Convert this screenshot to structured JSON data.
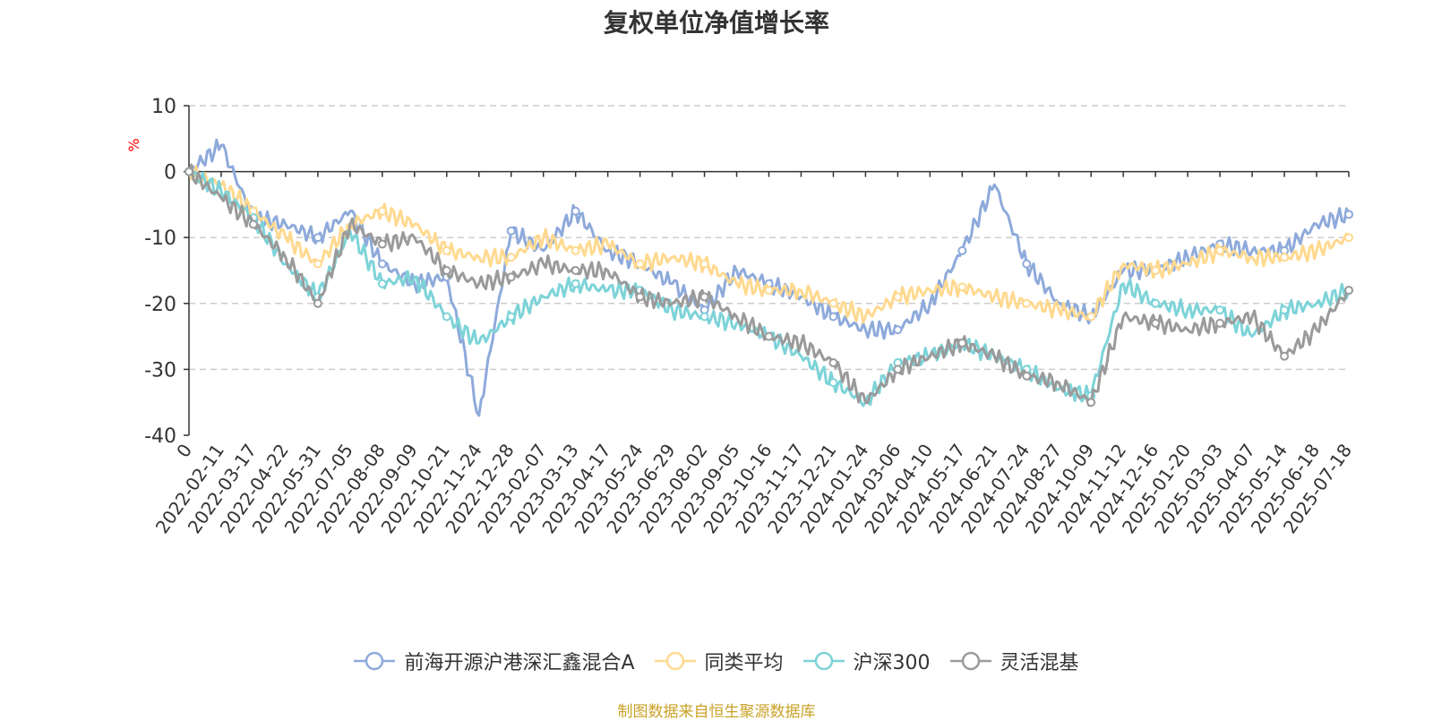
{
  "chart_data": {
    "type": "line",
    "title": "复权单位净值增长率",
    "ylabel": "%",
    "ylim": [
      -40,
      10
    ],
    "yticks": [
      10,
      0,
      -10,
      -20,
      -30,
      -40
    ],
    "grid": true,
    "legend_position": "bottom-center",
    "x_tick_labels": [
      "0",
      "2022-02-11",
      "2022-03-17",
      "2022-04-22",
      "2022-05-31",
      "2022-07-05",
      "2022-08-08",
      "2022-09-09",
      "2022-10-21",
      "2022-11-24",
      "2022-12-28",
      "2023-02-07",
      "2023-03-13",
      "2023-04-17",
      "2023-05-24",
      "2023-06-29",
      "2023-08-02",
      "2023-09-05",
      "2023-10-16",
      "2023-11-17",
      "2023-12-21",
      "2024-01-24",
      "2024-03-06",
      "2024-04-10",
      "2024-05-17",
      "2024-06-21",
      "2024-07-24",
      "2024-08-27",
      "2024-10-09",
      "2024-11-12",
      "2024-12-16",
      "2025-01-20",
      "2025-03-03",
      "2025-04-07",
      "2025-05-14",
      "2025-06-18",
      "2025-07-18"
    ],
    "series": [
      {
        "name": "前海开源沪港深汇鑫混合A",
        "color": "#8eaadb",
        "values": [
          0,
          4,
          -7,
          -8,
          -10,
          -6,
          -14,
          -17,
          -16,
          -37,
          -9,
          -12,
          -6,
          -12,
          -14,
          -17,
          -21,
          -15,
          -17,
          -19,
          -22,
          -24,
          -24,
          -20,
          -12,
          -2,
          -14,
          -20,
          -22,
          -15,
          -15,
          -13,
          -11,
          -12,
          -12,
          -8,
          -6.5
        ]
      },
      {
        "name": "同类平均",
        "color": "#ffd98f",
        "values": [
          0,
          -2,
          -6,
          -10,
          -14,
          -8,
          -6,
          -8,
          -12,
          -13,
          -13,
          -10,
          -12,
          -11,
          -14,
          -13,
          -14,
          -17,
          -18,
          -18,
          -20,
          -22,
          -19,
          -18,
          -17.5,
          -19,
          -20,
          -21,
          -22,
          -14,
          -15,
          -14,
          -12,
          -13,
          -13,
          -12,
          -10
        ]
      },
      {
        "name": "沪深300",
        "color": "#7dd3d8",
        "values": [
          0,
          -3,
          -7,
          -14,
          -19,
          -9,
          -17,
          -16,
          -22,
          -26,
          -22,
          -19,
          -17,
          -18,
          -18,
          -21,
          -22,
          -23,
          -25,
          -28,
          -32,
          -35,
          -29,
          -28,
          -26,
          -28,
          -30,
          -33,
          -34,
          -17,
          -20,
          -21,
          -21,
          -25,
          -21,
          -20,
          -18
        ]
      },
      {
        "name": "灵活混基",
        "color": "#9a9a9a",
        "values": [
          0,
          -4,
          -8,
          -13,
          -20,
          -8,
          -11,
          -10,
          -15,
          -17,
          -16,
          -14,
          -15,
          -15,
          -19,
          -20,
          -19,
          -22,
          -25,
          -26,
          -29,
          -35,
          -30,
          -28,
          -26,
          -28,
          -31,
          -32,
          -35,
          -22,
          -23,
          -24,
          -23,
          -22,
          -28,
          -24,
          -18
        ]
      }
    ]
  },
  "source_text": "制图数据来自恒生聚源数据库",
  "colors": {
    "title": "#333333",
    "axis": "#333333",
    "grid": "#cccccc",
    "ylabel": "#ff0000",
    "source": "#c9a227"
  }
}
